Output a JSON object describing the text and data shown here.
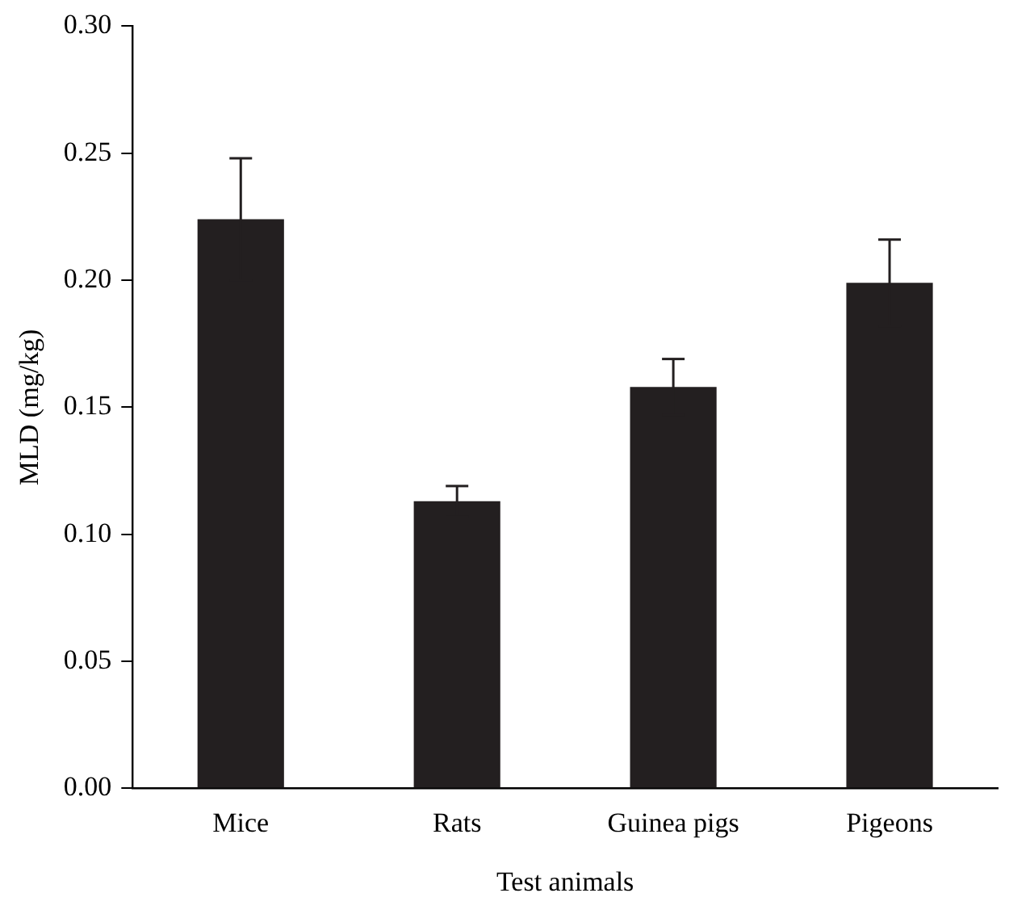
{
  "chart_data": {
    "type": "bar",
    "xlabel": "Test animals",
    "ylabel": "MLD (mg/kg)",
    "categories": [
      "Mice",
      "Rats",
      "Guinea pigs",
      "Pigeons"
    ],
    "values": [
      0.224,
      0.113,
      0.158,
      0.199
    ],
    "errors": [
      0.024,
      0.006,
      0.011,
      0.017
    ],
    "color": "#231f20",
    "ylim": [
      0,
      0.3
    ],
    "yticks": [
      {
        "value": 0,
        "label": "0.00"
      },
      {
        "value": 0.05,
        "label": "0.05"
      },
      {
        "value": 0.1,
        "label": "0.10"
      },
      {
        "value": 0.15,
        "label": "0.15"
      },
      {
        "value": 0.2,
        "label": "0.20"
      },
      {
        "value": 0.25,
        "label": "0.25"
      },
      {
        "value": 0.3,
        "label": "0.30"
      }
    ],
    "grid": false,
    "legend": false
  }
}
